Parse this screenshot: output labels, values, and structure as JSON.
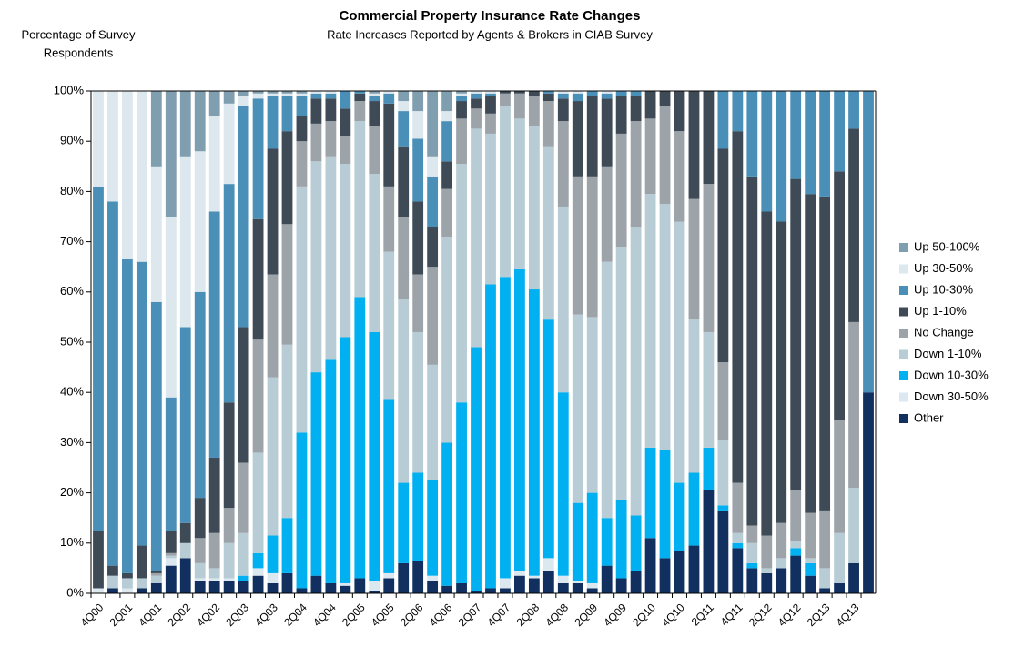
{
  "chart_data": {
    "type": "stacked_bar",
    "title": "Commercial Property Insurance Rate Changes",
    "subtitle": "Rate Increases Reported by Agents & Brokers in CIAB Survey",
    "y_label": [
      "Percentage of Survey",
      "Respondents"
    ],
    "categories": [
      "4Q00",
      null,
      "2Q01",
      null,
      "4Q01",
      null,
      "2Q02",
      null,
      "4Q02",
      null,
      "2Q03",
      null,
      "4Q03",
      null,
      "2Q04",
      null,
      "4Q04",
      null,
      "2Q05",
      null,
      "4Q05",
      null,
      "2Q06",
      null,
      "4Q06",
      null,
      "2Q07",
      null,
      "4Q07",
      null,
      "2Q08",
      null,
      "4Q08",
      null,
      "2Q09",
      null,
      "4Q09",
      null,
      "2Q10",
      null,
      "4Q10",
      null,
      "2Q11",
      null,
      "4Q11",
      null,
      "2Q12",
      null,
      "4Q12",
      null,
      "2Q13",
      null,
      "4Q13",
      null
    ],
    "series": [
      {
        "name": "Other",
        "color": "#11305f",
        "values": [
          0,
          1,
          0,
          1,
          2,
          5.5,
          7,
          2.5,
          2.5,
          2.5,
          2.5,
          3.5,
          2,
          4,
          1,
          3.5,
          2,
          1.5,
          3,
          0.5,
          3,
          6,
          6.5,
          2.5,
          1.5,
          2,
          0.5,
          1,
          1,
          3.5,
          3,
          4.5,
          2,
          2,
          1,
          5.5,
          3,
          4.5,
          11,
          7,
          8.5,
          9.5,
          20.5,
          16.5,
          9,
          5,
          4,
          5,
          7.5,
          3.5,
          1,
          2,
          6,
          40
        ]
      },
      {
        "name": "Down 30-50%",
        "color": "#dbe8f0",
        "values": [
          1,
          0,
          1,
          0,
          0,
          1.5,
          0,
          0.5,
          0.5,
          0.5,
          0,
          1.5,
          2,
          0,
          0,
          0,
          0,
          0.5,
          0,
          2,
          1,
          0,
          0,
          1,
          0,
          0,
          0,
          0,
          2,
          1,
          0.5,
          2.5,
          1.5,
          0.5,
          1,
          0,
          0,
          0,
          0,
          0,
          0,
          0,
          0,
          0,
          0,
          0,
          0,
          0,
          0,
          0,
          0,
          0,
          0,
          0
        ]
      },
      {
        "name": "Down 10-30%",
        "color": "#00b0f0",
        "values": [
          0,
          0,
          0,
          0,
          0,
          0,
          0,
          0,
          0,
          0,
          1,
          3,
          7.5,
          11,
          31,
          40.5,
          44.5,
          49,
          56,
          49.5,
          34.5,
          16,
          17.5,
          19,
          28.5,
          36,
          48.5,
          60.5,
          60,
          60,
          57,
          47.5,
          36.5,
          15.5,
          18,
          9.5,
          15.5,
          11,
          18,
          21.5,
          13.5,
          14.5,
          8.5,
          1,
          1,
          1,
          0,
          0,
          1.5,
          2.5,
          0,
          0,
          0,
          0
        ]
      },
      {
        "name": "Down 1-10%",
        "color": "#b7ccd5",
        "values": [
          0,
          2.5,
          2,
          2,
          1.5,
          0.5,
          3,
          3,
          2,
          7,
          8.5,
          20,
          31.5,
          34.5,
          49,
          42,
          40.5,
          34.5,
          35,
          31.5,
          29.5,
          36.5,
          28,
          23,
          41,
          47.5,
          43.5,
          30,
          34,
          30,
          32.5,
          34.5,
          37,
          37.5,
          35,
          51,
          50.5,
          57.5,
          50.5,
          49,
          52,
          30.5,
          23,
          13,
          2,
          4,
          1,
          2,
          1.5,
          1,
          4,
          10,
          15,
          0
        ]
      },
      {
        "name": "No Change",
        "color": "#9ca3a9",
        "values": [
          0,
          0,
          0,
          0,
          0.5,
          0.5,
          0,
          5,
          7,
          7,
          14,
          22.5,
          20.5,
          24,
          9,
          7.5,
          7,
          5.5,
          4,
          9.5,
          13,
          16.5,
          11.5,
          19.5,
          9.5,
          9,
          4,
          4,
          2.5,
          5,
          6,
          9,
          17,
          27.5,
          28,
          19,
          22.5,
          21,
          15,
          19.5,
          18,
          24,
          29.5,
          15.5,
          10,
          3.5,
          6.5,
          7,
          10,
          9,
          11.5,
          22.5,
          33,
          0
        ]
      },
      {
        "name": "Up 1-10%",
        "color": "#3e4b57",
        "values": [
          11.5,
          2,
          1,
          6.5,
          0.5,
          4.5,
          4,
          8,
          15,
          21,
          27,
          24,
          25,
          18.5,
          5,
          5,
          4.5,
          5.5,
          1.5,
          5,
          16.5,
          14,
          14.5,
          8,
          5.5,
          3.5,
          2,
          3.5,
          0.5,
          0.5,
          1,
          1.5,
          4.5,
          15,
          16,
          13.5,
          7.5,
          5,
          5.5,
          3,
          8,
          21.5,
          18.5,
          42.5,
          70,
          69.5,
          64.5,
          60,
          62,
          63.5,
          62.5,
          49.5,
          38.5,
          0
        ]
      },
      {
        "name": "Up 10-30%",
        "color": "#4a8fb7",
        "values": [
          68.5,
          72.5,
          62.5,
          56.5,
          53.5,
          26.5,
          39,
          41,
          49,
          43.5,
          44,
          24,
          10.5,
          7,
          4,
          1,
          1,
          3.5,
          0.5,
          1,
          2,
          7,
          12.5,
          10,
          8,
          1,
          1,
          0.5,
          0,
          0,
          0,
          0.5,
          1,
          1.5,
          1,
          1,
          1,
          1,
          0,
          0,
          0,
          0,
          0,
          11.5,
          8,
          17,
          24,
          26,
          17.5,
          20.5,
          21,
          16,
          7.5,
          60
        ]
      },
      {
        "name": "Up 30-50%",
        "color": "#dce7ee",
        "values": [
          19,
          22,
          33.5,
          34,
          27,
          36,
          34,
          28,
          19,
          16,
          2,
          1,
          0.5,
          0.5,
          0.5,
          0.5,
          0.5,
          0,
          0,
          0.5,
          0.5,
          2,
          5.5,
          4,
          2,
          0.5,
          0.5,
          0.5,
          0,
          0,
          0,
          0,
          0.5,
          0.5,
          0,
          0.5,
          0,
          0,
          0,
          0,
          0,
          0,
          0,
          0,
          0,
          0,
          0,
          0,
          0,
          0,
          0,
          0,
          0,
          0
        ]
      },
      {
        "name": "Up 50-100%",
        "color": "#7f9eaf",
        "values": [
          0,
          0,
          0,
          0,
          15,
          25,
          13,
          12,
          5,
          2.5,
          1,
          0.5,
          0.5,
          0.5,
          0.5,
          0,
          0,
          0,
          0,
          0.5,
          0,
          2,
          4,
          13,
          4,
          0.5,
          0,
          0,
          0,
          0,
          0,
          0,
          0,
          0,
          0,
          0,
          0,
          0,
          0,
          0,
          0,
          0,
          0,
          0,
          0,
          0,
          0,
          0,
          0,
          0,
          0,
          0,
          0,
          0
        ]
      }
    ],
    "ylim": [
      0,
      100
    ],
    "yticks": [
      {
        "value": 0,
        "label": "0%"
      },
      {
        "value": 10,
        "label": "10%"
      },
      {
        "value": 20,
        "label": "20%"
      },
      {
        "value": 30,
        "label": "30%"
      },
      {
        "value": 40,
        "label": "40%"
      },
      {
        "value": 50,
        "label": "50%"
      },
      {
        "value": 60,
        "label": "60%"
      },
      {
        "value": 70,
        "label": "70%"
      },
      {
        "value": 80,
        "label": "80%"
      },
      {
        "value": 90,
        "label": "90%"
      },
      {
        "value": 100,
        "label": "100%"
      }
    ],
    "legend": "right"
  }
}
